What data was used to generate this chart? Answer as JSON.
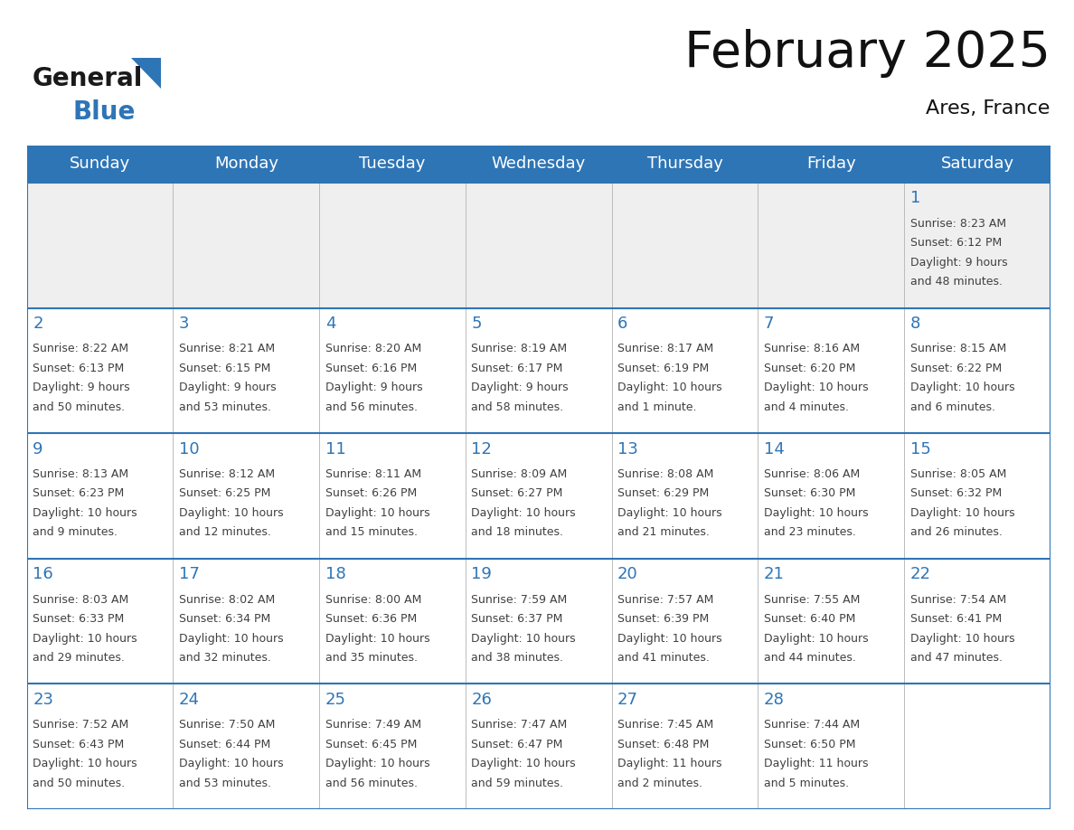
{
  "title": "February 2025",
  "subtitle": "Ares, France",
  "days_of_week": [
    "Sunday",
    "Monday",
    "Tuesday",
    "Wednesday",
    "Thursday",
    "Friday",
    "Saturday"
  ],
  "header_bg": "#2E75B6",
  "header_text_color": "#FFFFFF",
  "cell_bg_week0": "#EFEFEF",
  "cell_bg_other": "#FFFFFF",
  "day_number_color": "#2E75B6",
  "text_color": "#404040",
  "line_color": "#2E75B6",
  "weeks": [
    [
      {
        "day": null,
        "sunrise": null,
        "sunset": null,
        "daylight": null
      },
      {
        "day": null,
        "sunrise": null,
        "sunset": null,
        "daylight": null
      },
      {
        "day": null,
        "sunrise": null,
        "sunset": null,
        "daylight": null
      },
      {
        "day": null,
        "sunrise": null,
        "sunset": null,
        "daylight": null
      },
      {
        "day": null,
        "sunrise": null,
        "sunset": null,
        "daylight": null
      },
      {
        "day": null,
        "sunrise": null,
        "sunset": null,
        "daylight": null
      },
      {
        "day": 1,
        "sunrise": "8:23 AM",
        "sunset": "6:12 PM",
        "daylight": "9 hours\nand 48 minutes."
      }
    ],
    [
      {
        "day": 2,
        "sunrise": "8:22 AM",
        "sunset": "6:13 PM",
        "daylight": "9 hours\nand 50 minutes."
      },
      {
        "day": 3,
        "sunrise": "8:21 AM",
        "sunset": "6:15 PM",
        "daylight": "9 hours\nand 53 minutes."
      },
      {
        "day": 4,
        "sunrise": "8:20 AM",
        "sunset": "6:16 PM",
        "daylight": "9 hours\nand 56 minutes."
      },
      {
        "day": 5,
        "sunrise": "8:19 AM",
        "sunset": "6:17 PM",
        "daylight": "9 hours\nand 58 minutes."
      },
      {
        "day": 6,
        "sunrise": "8:17 AM",
        "sunset": "6:19 PM",
        "daylight": "10 hours\nand 1 minute."
      },
      {
        "day": 7,
        "sunrise": "8:16 AM",
        "sunset": "6:20 PM",
        "daylight": "10 hours\nand 4 minutes."
      },
      {
        "day": 8,
        "sunrise": "8:15 AM",
        "sunset": "6:22 PM",
        "daylight": "10 hours\nand 6 minutes."
      }
    ],
    [
      {
        "day": 9,
        "sunrise": "8:13 AM",
        "sunset": "6:23 PM",
        "daylight": "10 hours\nand 9 minutes."
      },
      {
        "day": 10,
        "sunrise": "8:12 AM",
        "sunset": "6:25 PM",
        "daylight": "10 hours\nand 12 minutes."
      },
      {
        "day": 11,
        "sunrise": "8:11 AM",
        "sunset": "6:26 PM",
        "daylight": "10 hours\nand 15 minutes."
      },
      {
        "day": 12,
        "sunrise": "8:09 AM",
        "sunset": "6:27 PM",
        "daylight": "10 hours\nand 18 minutes."
      },
      {
        "day": 13,
        "sunrise": "8:08 AM",
        "sunset": "6:29 PM",
        "daylight": "10 hours\nand 21 minutes."
      },
      {
        "day": 14,
        "sunrise": "8:06 AM",
        "sunset": "6:30 PM",
        "daylight": "10 hours\nand 23 minutes."
      },
      {
        "day": 15,
        "sunrise": "8:05 AM",
        "sunset": "6:32 PM",
        "daylight": "10 hours\nand 26 minutes."
      }
    ],
    [
      {
        "day": 16,
        "sunrise": "8:03 AM",
        "sunset": "6:33 PM",
        "daylight": "10 hours\nand 29 minutes."
      },
      {
        "day": 17,
        "sunrise": "8:02 AM",
        "sunset": "6:34 PM",
        "daylight": "10 hours\nand 32 minutes."
      },
      {
        "day": 18,
        "sunrise": "8:00 AM",
        "sunset": "6:36 PM",
        "daylight": "10 hours\nand 35 minutes."
      },
      {
        "day": 19,
        "sunrise": "7:59 AM",
        "sunset": "6:37 PM",
        "daylight": "10 hours\nand 38 minutes."
      },
      {
        "day": 20,
        "sunrise": "7:57 AM",
        "sunset": "6:39 PM",
        "daylight": "10 hours\nand 41 minutes."
      },
      {
        "day": 21,
        "sunrise": "7:55 AM",
        "sunset": "6:40 PM",
        "daylight": "10 hours\nand 44 minutes."
      },
      {
        "day": 22,
        "sunrise": "7:54 AM",
        "sunset": "6:41 PM",
        "daylight": "10 hours\nand 47 minutes."
      }
    ],
    [
      {
        "day": 23,
        "sunrise": "7:52 AM",
        "sunset": "6:43 PM",
        "daylight": "10 hours\nand 50 minutes."
      },
      {
        "day": 24,
        "sunrise": "7:50 AM",
        "sunset": "6:44 PM",
        "daylight": "10 hours\nand 53 minutes."
      },
      {
        "day": 25,
        "sunrise": "7:49 AM",
        "sunset": "6:45 PM",
        "daylight": "10 hours\nand 56 minutes."
      },
      {
        "day": 26,
        "sunrise": "7:47 AM",
        "sunset": "6:47 PM",
        "daylight": "10 hours\nand 59 minutes."
      },
      {
        "day": 27,
        "sunrise": "7:45 AM",
        "sunset": "6:48 PM",
        "daylight": "11 hours\nand 2 minutes."
      },
      {
        "day": 28,
        "sunrise": "7:44 AM",
        "sunset": "6:50 PM",
        "daylight": "11 hours\nand 5 minutes."
      },
      {
        "day": null,
        "sunrise": null,
        "sunset": null,
        "daylight": null
      }
    ]
  ],
  "logo_general_color": "#1a1a1a",
  "logo_blue_color": "#2E75B6",
  "logo_triangle_color": "#2E75B6",
  "title_fontsize": 40,
  "subtitle_fontsize": 16,
  "header_fontsize": 13,
  "day_num_fontsize": 13,
  "cell_text_fontsize": 9
}
